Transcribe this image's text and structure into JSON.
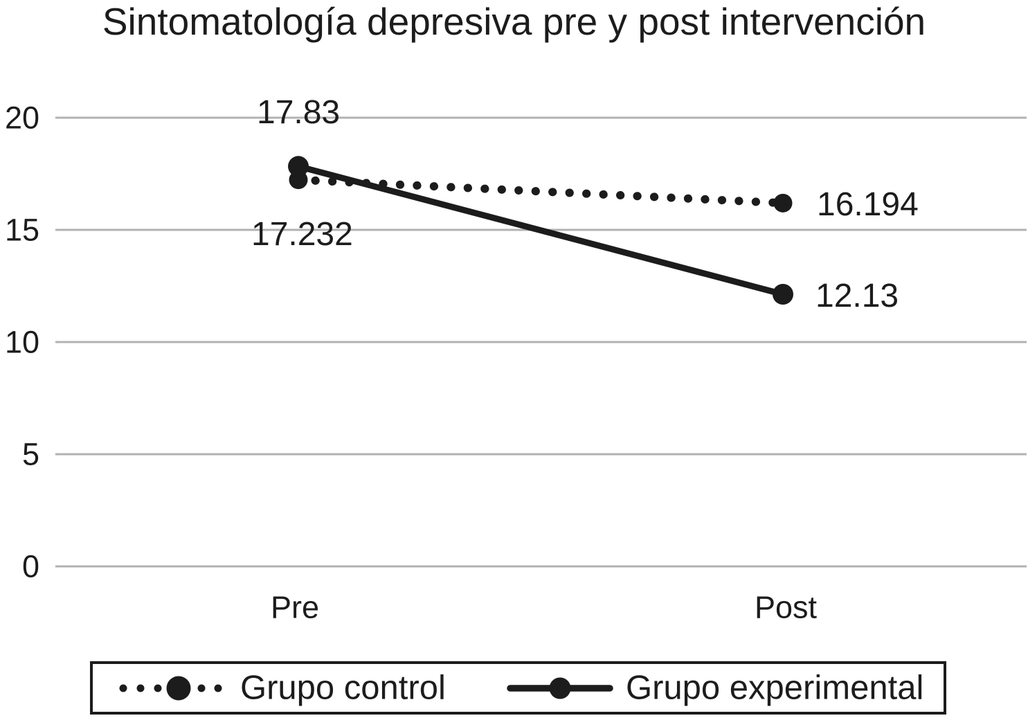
{
  "chart_data": {
    "type": "line",
    "title": "Sintomatología depresiva pre y post intervención",
    "categories": [
      "Pre",
      "Post"
    ],
    "series": [
      {
        "name": "Grupo control",
        "style": "dotted",
        "values": [
          17.232,
          16.194
        ],
        "labels": [
          "17.232",
          "16.194"
        ]
      },
      {
        "name": "Grupo experimental",
        "style": "solid",
        "values": [
          17.83,
          12.13
        ],
        "labels": [
          "17.83",
          "12.13"
        ]
      }
    ],
    "yticks": [
      0,
      5,
      10,
      15,
      20
    ],
    "ylim": [
      0,
      20
    ],
    "grid": "horizontal-only",
    "legend_position": "bottom",
    "colors": {
      "series": "#1c1c1c",
      "text": "#1c1c1c",
      "gridline": "#b2b2b2",
      "background": "#ffffff"
    }
  }
}
